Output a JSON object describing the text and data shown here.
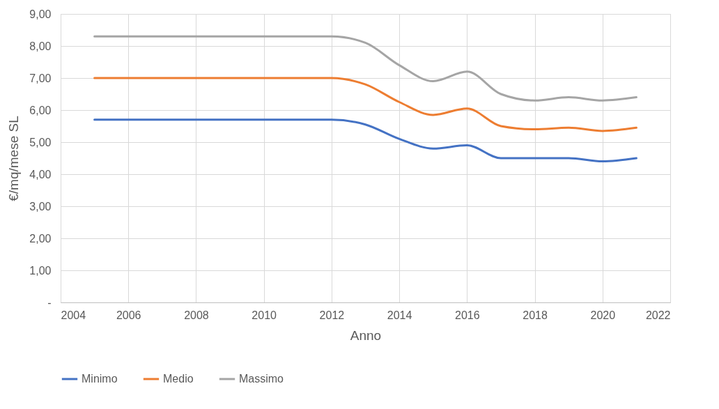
{
  "chart_data": {
    "type": "line",
    "xlabel": "Anno",
    "ylabel": "€/mq/mese SL",
    "x": [
      2005,
      2006,
      2007,
      2008,
      2009,
      2010,
      2011,
      2012,
      2013,
      2014,
      2015,
      2016,
      2017,
      2018,
      2019,
      2020,
      2021
    ],
    "series": [
      {
        "name": "Minimo",
        "color": "#4472c4",
        "values": [
          5.7,
          5.7,
          5.7,
          5.7,
          5.7,
          5.7,
          5.7,
          5.7,
          5.55,
          5.1,
          4.8,
          4.9,
          4.5,
          4.5,
          4.5,
          4.4,
          4.5
        ]
      },
      {
        "name": "Medio",
        "color": "#ed7d31",
        "values": [
          7.0,
          7.0,
          7.0,
          7.0,
          7.0,
          7.0,
          7.0,
          7.0,
          6.8,
          6.25,
          5.85,
          6.05,
          5.5,
          5.4,
          5.45,
          5.35,
          5.45
        ]
      },
      {
        "name": "Massimo",
        "color": "#a5a5a5",
        "values": [
          8.3,
          8.3,
          8.3,
          8.3,
          8.3,
          8.3,
          8.3,
          8.3,
          8.1,
          7.4,
          6.9,
          7.2,
          6.5,
          6.3,
          6.4,
          6.3,
          6.4
        ]
      }
    ],
    "xlim": [
      2004,
      2022
    ],
    "xticks": [
      2004,
      2006,
      2008,
      2010,
      2012,
      2014,
      2016,
      2018,
      2020,
      2022
    ],
    "ylim": [
      0,
      9
    ],
    "yticks": [
      {
        "value": 0,
        "label": "-"
      },
      {
        "value": 1,
        "label": "1,00"
      },
      {
        "value": 2,
        "label": "2,00"
      },
      {
        "value": 3,
        "label": "3,00"
      },
      {
        "value": 4,
        "label": "4,00"
      },
      {
        "value": 5,
        "label": "5,00"
      },
      {
        "value": 6,
        "label": "6,00"
      },
      {
        "value": 7,
        "label": "7,00"
      },
      {
        "value": 8,
        "label": "8,00"
      },
      {
        "value": 9,
        "label": "9,00"
      }
    ],
    "grid": true,
    "legend": "bottom",
    "marker": "none",
    "line_style": "solid"
  }
}
